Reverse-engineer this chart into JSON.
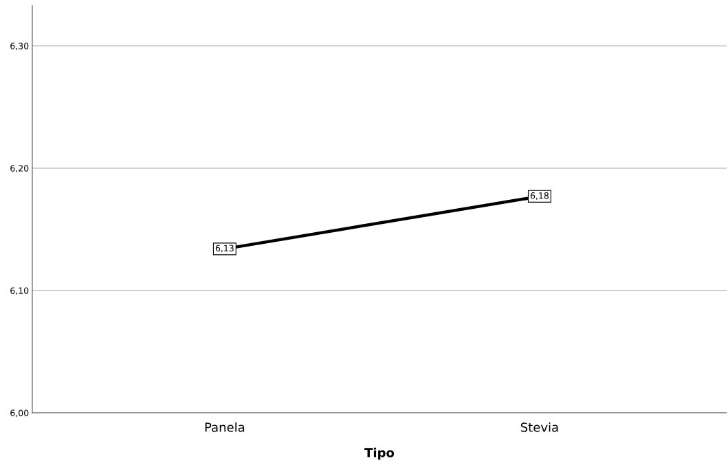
{
  "chart_data": {
    "type": "line",
    "xlabel": "Tipo",
    "categories": [
      "Panela",
      "Stevia"
    ],
    "series": [
      {
        "color": "#000000",
        "values": [
          6.134,
          6.177
        ],
        "value_labels": [
          "6,13",
          "6,18"
        ]
      }
    ],
    "ylim": [
      6.0,
      6.333
    ],
    "yticks": [
      {
        "value": 6.0,
        "label": "6,00"
      },
      {
        "value": 6.1,
        "label": "6,10"
      },
      {
        "value": 6.2,
        "label": "6,20"
      },
      {
        "value": 6.3,
        "label": "6,30"
      }
    ],
    "grid": "y",
    "legend": false,
    "marker": "square",
    "line_style": "solid"
  }
}
